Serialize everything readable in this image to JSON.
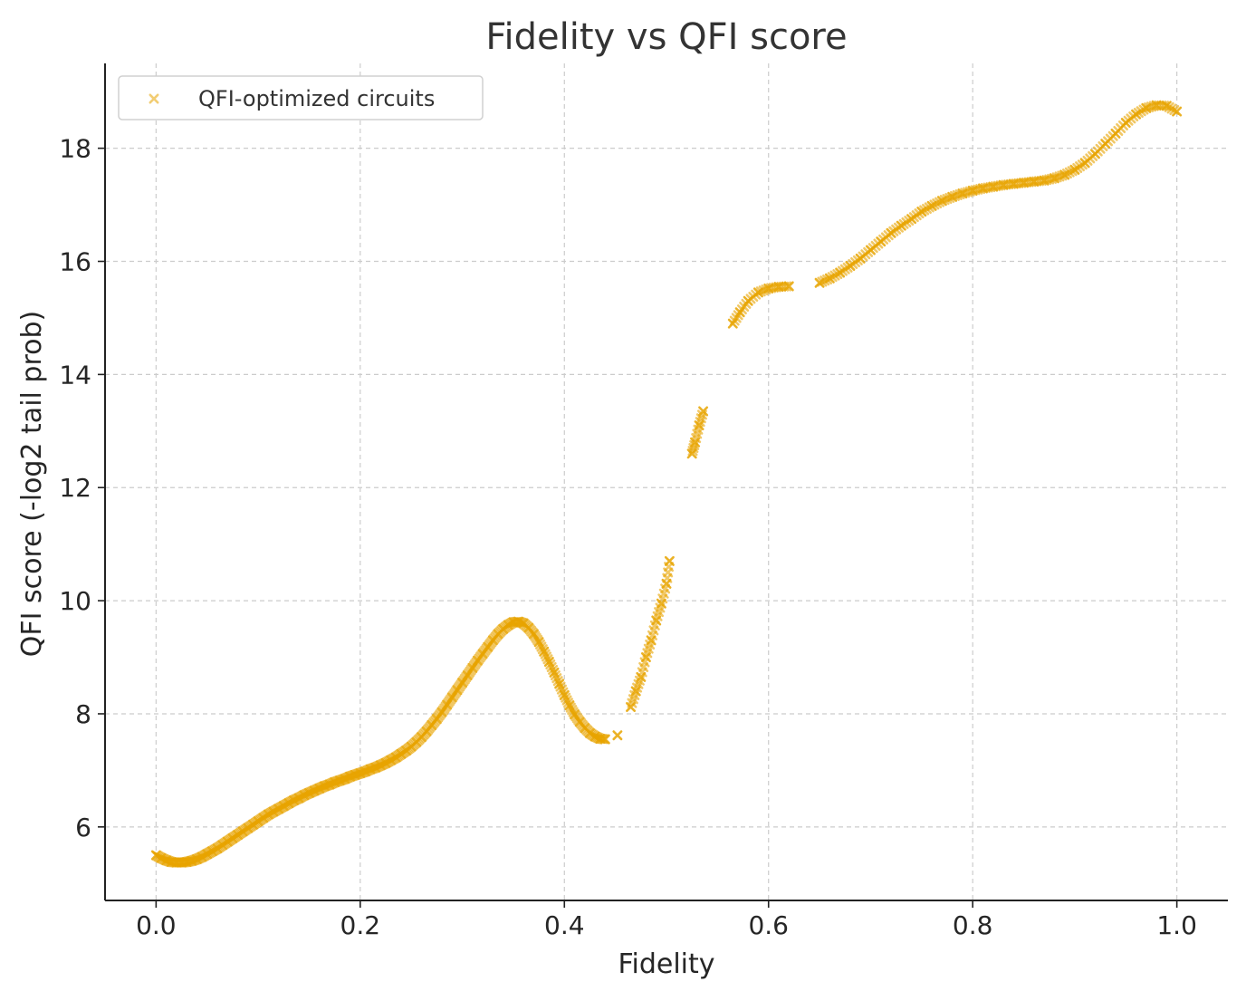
{
  "chart_data": {
    "type": "scatter",
    "title": "Fidelity vs QFI score",
    "xlabel": "Fidelity",
    "ylabel": "QFI score (-log2 tail prob)",
    "xlim": [
      -0.05,
      1.05
    ],
    "ylim": [
      4.7,
      19.5
    ],
    "x_ticks": [
      "0.0",
      "0.2",
      "0.4",
      "0.6",
      "0.8",
      "1.0"
    ],
    "y_ticks": [
      "6",
      "8",
      "10",
      "12",
      "14",
      "16",
      "18"
    ],
    "grid": true,
    "legend_position": "top-left",
    "marker": "x",
    "color": "#E8A400",
    "series": [
      {
        "name": "QFI-optimized circuits",
        "points": [
          [
            0.0,
            5.5
          ],
          [
            0.005,
            5.45
          ],
          [
            0.01,
            5.41
          ],
          [
            0.015,
            5.38
          ],
          [
            0.02,
            5.37
          ],
          [
            0.025,
            5.37
          ],
          [
            0.03,
            5.38
          ],
          [
            0.035,
            5.4
          ],
          [
            0.04,
            5.43
          ],
          [
            0.045,
            5.47
          ],
          [
            0.05,
            5.52
          ],
          [
            0.055,
            5.57
          ],
          [
            0.06,
            5.62
          ],
          [
            0.065,
            5.68
          ],
          [
            0.07,
            5.74
          ],
          [
            0.075,
            5.8
          ],
          [
            0.08,
            5.86
          ],
          [
            0.085,
            5.92
          ],
          [
            0.09,
            5.98
          ],
          [
            0.095,
            6.04
          ],
          [
            0.1,
            6.1
          ],
          [
            0.105,
            6.16
          ],
          [
            0.11,
            6.22
          ],
          [
            0.115,
            6.27
          ],
          [
            0.12,
            6.32
          ],
          [
            0.125,
            6.37
          ],
          [
            0.13,
            6.42
          ],
          [
            0.135,
            6.47
          ],
          [
            0.14,
            6.51
          ],
          [
            0.145,
            6.56
          ],
          [
            0.15,
            6.6
          ],
          [
            0.155,
            6.64
          ],
          [
            0.16,
            6.68
          ],
          [
            0.165,
            6.72
          ],
          [
            0.17,
            6.75
          ],
          [
            0.175,
            6.79
          ],
          [
            0.18,
            6.82
          ],
          [
            0.185,
            6.85
          ],
          [
            0.19,
            6.89
          ],
          [
            0.195,
            6.92
          ],
          [
            0.2,
            6.95
          ],
          [
            0.205,
            6.98
          ],
          [
            0.21,
            7.02
          ],
          [
            0.215,
            7.05
          ],
          [
            0.22,
            7.09
          ],
          [
            0.225,
            7.13
          ],
          [
            0.23,
            7.18
          ],
          [
            0.235,
            7.23
          ],
          [
            0.24,
            7.29
          ],
          [
            0.245,
            7.35
          ],
          [
            0.25,
            7.42
          ],
          [
            0.255,
            7.5
          ],
          [
            0.26,
            7.59
          ],
          [
            0.265,
            7.69
          ],
          [
            0.27,
            7.8
          ],
          [
            0.275,
            7.91
          ],
          [
            0.28,
            8.03
          ],
          [
            0.285,
            8.16
          ],
          [
            0.29,
            8.29
          ],
          [
            0.295,
            8.42
          ],
          [
            0.3,
            8.55
          ],
          [
            0.305,
            8.68
          ],
          [
            0.31,
            8.81
          ],
          [
            0.315,
            8.94
          ],
          [
            0.32,
            9.06
          ],
          [
            0.325,
            9.18
          ],
          [
            0.33,
            9.3
          ],
          [
            0.335,
            9.41
          ],
          [
            0.34,
            9.5
          ],
          [
            0.345,
            9.57
          ],
          [
            0.35,
            9.62
          ],
          [
            0.355,
            9.63
          ],
          [
            0.36,
            9.6
          ],
          [
            0.365,
            9.52
          ],
          [
            0.37,
            9.41
          ],
          [
            0.375,
            9.27
          ],
          [
            0.38,
            9.1
          ],
          [
            0.385,
            8.92
          ],
          [
            0.39,
            8.73
          ],
          [
            0.395,
            8.53
          ],
          [
            0.4,
            8.33
          ],
          [
            0.405,
            8.15
          ],
          [
            0.41,
            7.99
          ],
          [
            0.415,
            7.86
          ],
          [
            0.42,
            7.75
          ],
          [
            0.425,
            7.66
          ],
          [
            0.43,
            7.6
          ],
          [
            0.435,
            7.56
          ],
          [
            0.44,
            7.55
          ],
          [
            0.452,
            7.62
          ],
          [
            0.465,
            8.12
          ],
          [
            0.47,
            8.4
          ],
          [
            0.475,
            8.65
          ],
          [
            0.48,
            9.0
          ],
          [
            0.485,
            9.3
          ],
          [
            0.49,
            9.65
          ],
          [
            0.495,
            9.95
          ],
          [
            0.5,
            10.3
          ],
          [
            0.503,
            10.7
          ],
          [
            0.525,
            12.6
          ],
          [
            0.528,
            12.8
          ],
          [
            0.532,
            13.1
          ],
          [
            0.536,
            13.35
          ],
          [
            0.565,
            14.9
          ],
          [
            0.572,
            15.1
          ],
          [
            0.58,
            15.3
          ],
          [
            0.59,
            15.45
          ],
          [
            0.6,
            15.52
          ],
          [
            0.61,
            15.55
          ],
          [
            0.62,
            15.56
          ],
          [
            0.65,
            15.62
          ],
          [
            0.66,
            15.7
          ],
          [
            0.67,
            15.8
          ],
          [
            0.68,
            15.92
          ],
          [
            0.69,
            16.05
          ],
          [
            0.7,
            16.2
          ],
          [
            0.71,
            16.35
          ],
          [
            0.72,
            16.5
          ],
          [
            0.73,
            16.63
          ],
          [
            0.74,
            16.75
          ],
          [
            0.75,
            16.88
          ],
          [
            0.76,
            16.98
          ],
          [
            0.77,
            17.07
          ],
          [
            0.78,
            17.14
          ],
          [
            0.79,
            17.2
          ],
          [
            0.8,
            17.25
          ],
          [
            0.81,
            17.29
          ],
          [
            0.82,
            17.32
          ],
          [
            0.83,
            17.35
          ],
          [
            0.84,
            17.37
          ],
          [
            0.85,
            17.39
          ],
          [
            0.86,
            17.41
          ],
          [
            0.87,
            17.43
          ],
          [
            0.88,
            17.47
          ],
          [
            0.89,
            17.53
          ],
          [
            0.9,
            17.62
          ],
          [
            0.91,
            17.74
          ],
          [
            0.92,
            17.9
          ],
          [
            0.93,
            18.08
          ],
          [
            0.94,
            18.26
          ],
          [
            0.95,
            18.45
          ],
          [
            0.96,
            18.6
          ],
          [
            0.97,
            18.71
          ],
          [
            0.98,
            18.76
          ],
          [
            0.99,
            18.75
          ],
          [
            1.0,
            18.65
          ]
        ]
      }
    ]
  }
}
